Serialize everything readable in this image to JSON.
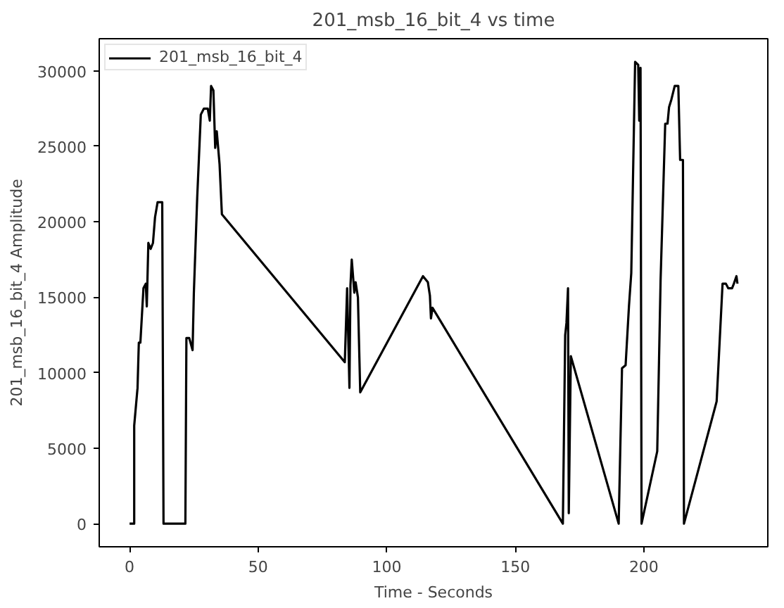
{
  "chart_data": {
    "type": "line",
    "title": "201_msb_16_bit_4 vs time",
    "xlabel": "Time - Seconds",
    "ylabel": "201_msb_16_bit_4 Amplitude",
    "xlim": [
      -11.8,
      248.2
    ],
    "ylim": [
      -1530,
      32130
    ],
    "xticks": [
      0,
      50,
      100,
      150,
      200
    ],
    "yticks": [
      0,
      5000,
      10000,
      15000,
      20000,
      25000,
      30000
    ],
    "grid": false,
    "legend": "top left",
    "line_style": "solid",
    "series": [
      {
        "name": "201_msb_16_bit_4",
        "color": "#000000",
        "x": [
          0,
          1.8,
          1.8,
          3.1,
          3.6,
          4.2,
          5.4,
          6.3,
          6.7,
          7.3,
          8.2,
          9.1,
          9.9,
          10.9,
          12.7,
          13.2,
          21.7,
          22.1,
          23.2,
          24.5,
          25,
          26.3,
          27.7,
          28.9,
          30.4,
          31.2,
          31.7,
          32.6,
          33.3,
          33.9,
          35,
          35.9,
          83.7,
          84.6,
          85.5,
          85.9,
          86.4,
          87.4,
          87.9,
          88.8,
          89.7,
          114.1,
          116,
          116.8,
          117.2,
          117.8,
          168.5,
          169.4,
          169.9,
          170.5,
          170.8,
          171.6,
          190.2,
          191.5,
          192.9,
          194.2,
          195.1,
          196.6,
          197.8,
          198.2,
          198.7,
          199.1,
          205.2,
          206.5,
          208.3,
          209.2,
          209.8,
          210.7,
          212,
          213.4,
          214.1,
          215.2,
          215.6,
          228.3,
          230.6,
          231.9,
          232.8,
          234.3,
          235,
          236,
          236.4
        ],
        "values": [
          0,
          0,
          6500,
          9000,
          12000,
          12000,
          15600,
          15900,
          14400,
          18600,
          18200,
          18600,
          20300,
          21300,
          21300,
          0,
          0,
          12300,
          12300,
          11500,
          15300,
          21600,
          27100,
          27500,
          27500,
          26700,
          29000,
          28700,
          24900,
          26000,
          23800,
          20500,
          10700,
          15600,
          9000,
          15800,
          17500,
          15300,
          16000,
          15000,
          8700,
          16400,
          16000,
          15100,
          13600,
          14300,
          0,
          12500,
          13300,
          15600,
          700,
          11100,
          0,
          10300,
          10500,
          14400,
          16600,
          30600,
          30400,
          26700,
          30200,
          0,
          4800,
          16100,
          26500,
          26500,
          27600,
          28100,
          29000,
          29000,
          24100,
          24100,
          0,
          8100,
          15900,
          15900,
          15600,
          15600,
          15900,
          16400,
          15900
        ]
      }
    ]
  }
}
